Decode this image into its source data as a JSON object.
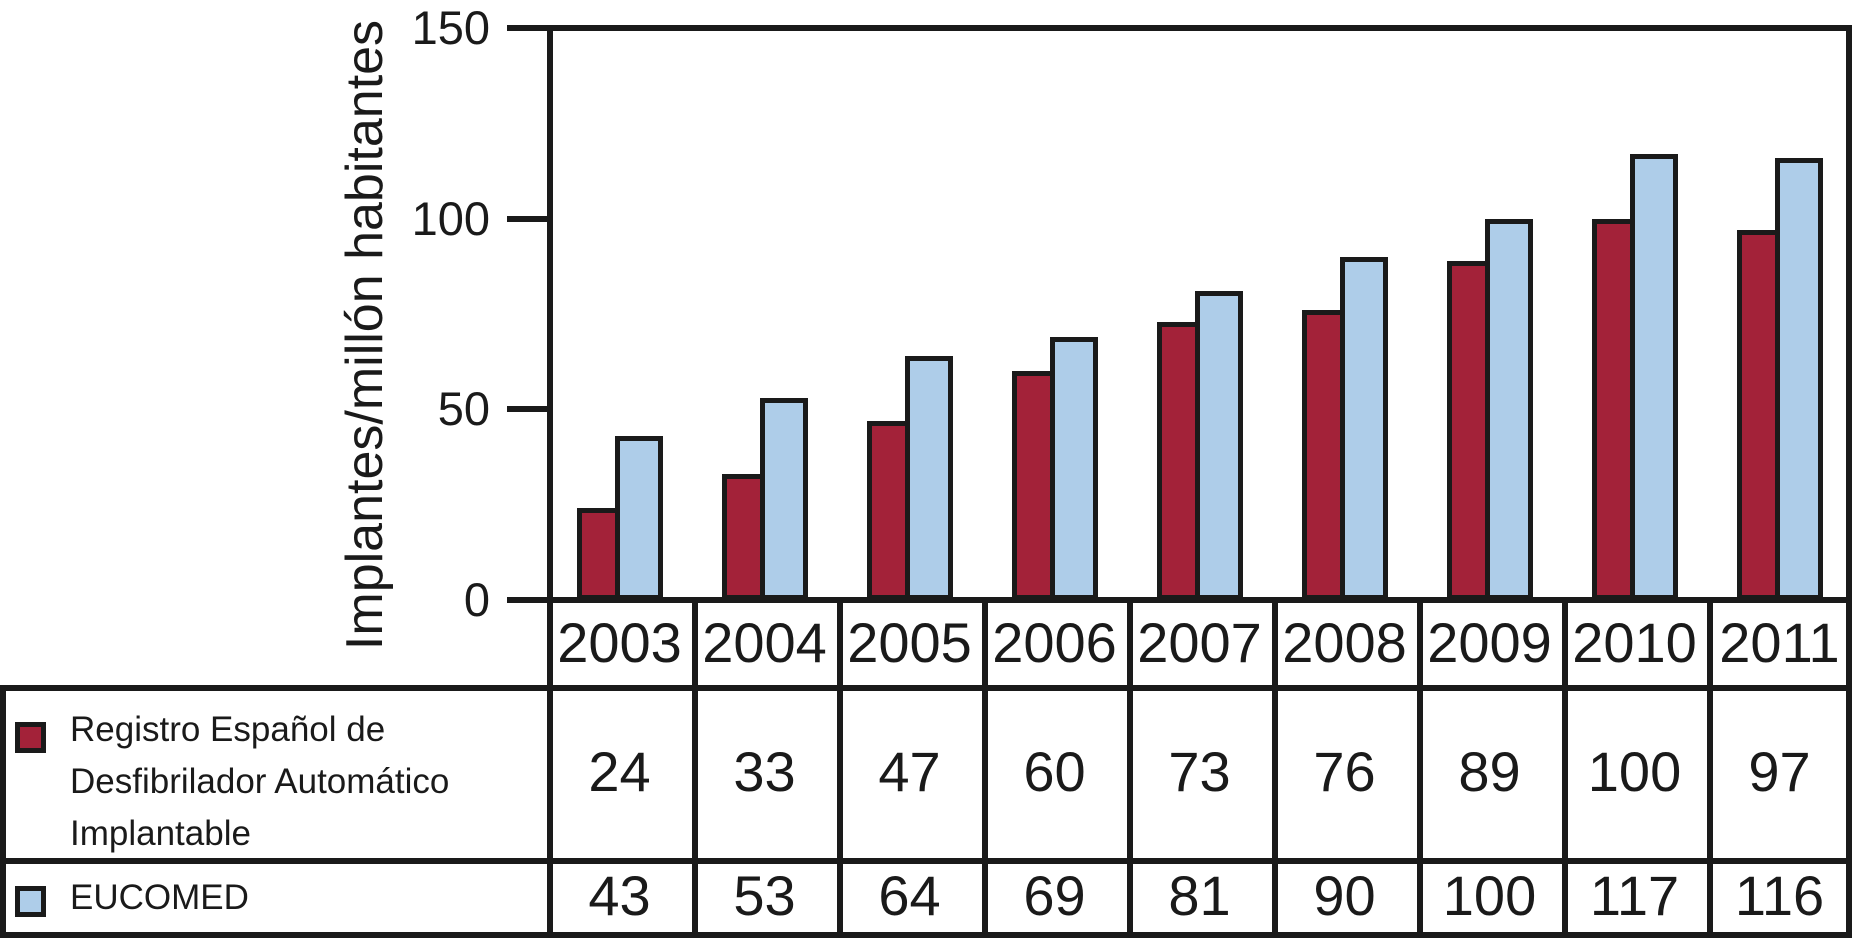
{
  "legend": {
    "rows": [
      {
        "label_lines": [
          "Registro Español de",
          "Desfibrilador Automático",
          "Implantable"
        ]
      },
      {
        "label_lines": [
          "EUCOMED"
        ]
      }
    ]
  },
  "chart_data": {
    "type": "bar",
    "title": "",
    "xlabel": "",
    "ylabel": "Implantes/millón habitantes",
    "categories": [
      "2003",
      "2004",
      "2005",
      "2006",
      "2007",
      "2008",
      "2009",
      "2010",
      "2011"
    ],
    "series": [
      {
        "name": "Registro Español de Desfibrilador Automático Implantable",
        "color": "#A32239",
        "values": [
          24,
          33,
          47,
          60,
          73,
          76,
          89,
          100,
          97
        ]
      },
      {
        "name": "EUCOMED",
        "color": "#AECDE9",
        "values": [
          43,
          53,
          64,
          69,
          81,
          90,
          100,
          117,
          116
        ]
      }
    ],
    "ylim": [
      0,
      150
    ],
    "yticks": [
      0,
      50,
      100,
      150
    ],
    "grid": false,
    "legend_position": "table-left",
    "outline_color": "#1a1a1a"
  }
}
